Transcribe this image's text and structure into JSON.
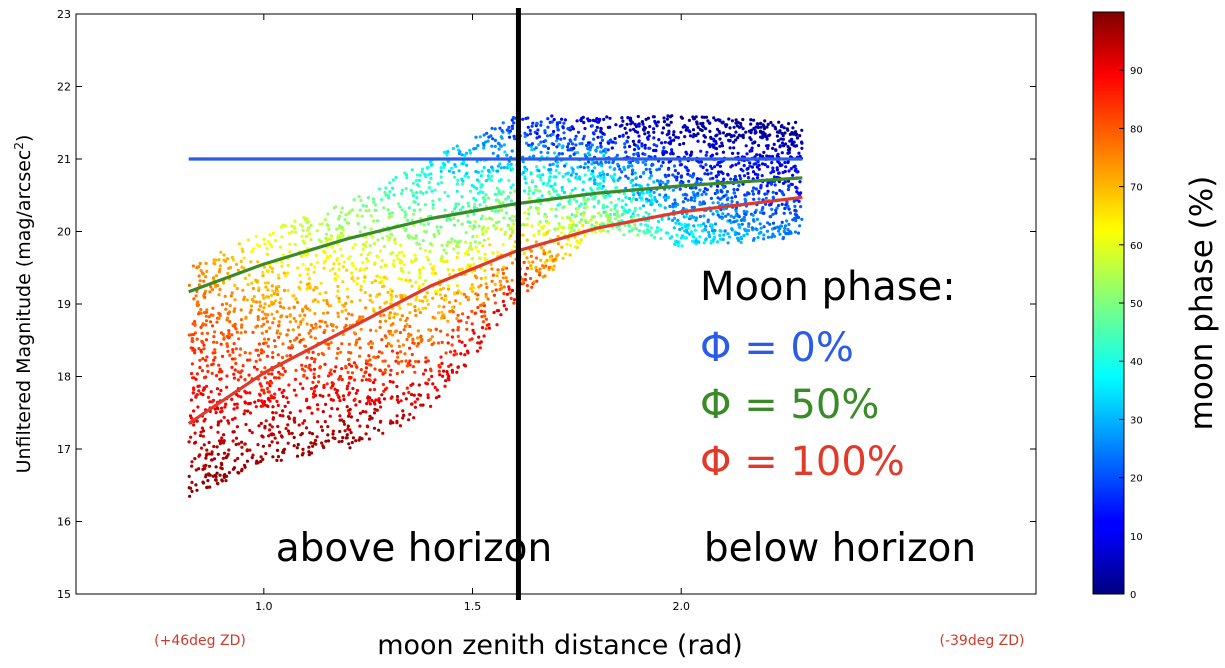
{
  "chart_data": {
    "type": "scatter",
    "xlabel": "moon zenith distance (rad)",
    "ylabel": "Unfiltered Magnitude (mag/arcsec",
    "ylabel_sup": "2",
    "ylabel_close": ")",
    "xlim": [
      0.55,
      2.85
    ],
    "ylim": [
      15,
      23
    ],
    "x_ticks": [
      1.0,
      1.5,
      2.0
    ],
    "x_tick_labels": [
      "1.0",
      "1.5",
      "2.0"
    ],
    "y_ticks": [
      15,
      16,
      17,
      18,
      19,
      20,
      21,
      22,
      23
    ],
    "y_tick_labels": [
      "15",
      "16",
      "17",
      "18",
      "19",
      "20",
      "21",
      "22",
      "23"
    ],
    "x_left_note": "(+46deg ZD)",
    "x_right_note": "(-39deg ZD)",
    "horizon_x": 1.61,
    "region_labels": {
      "left": "above horizon",
      "right": "below horizon"
    },
    "legend": {
      "title": "Moon phase:",
      "entries": [
        {
          "label": "Φ = 0%",
          "color": "#2b5ce8"
        },
        {
          "label": "Φ = 50%",
          "color": "#3a8a28"
        },
        {
          "label": "Φ = 100%",
          "color": "#e03a2a"
        }
      ]
    },
    "series": [
      {
        "name": "Φ = 0%",
        "kind": "line",
        "color": "#2b5ce8",
        "x": [
          0.82,
          2.29
        ],
        "y": [
          21.0,
          21.0
        ]
      },
      {
        "name": "Φ = 50%",
        "kind": "line",
        "color": "#3a8a28",
        "x": [
          0.82,
          1.0,
          1.2,
          1.4,
          1.6,
          1.8,
          2.0,
          2.29
        ],
        "y": [
          19.17,
          19.55,
          19.9,
          20.18,
          20.38,
          20.53,
          20.63,
          20.74
        ]
      },
      {
        "name": "Φ = 100%",
        "kind": "line",
        "color": "#e03a2a",
        "x": [
          0.82,
          1.0,
          1.2,
          1.4,
          1.6,
          1.8,
          2.0,
          2.29
        ],
        "y": [
          17.35,
          18.05,
          18.65,
          19.25,
          19.72,
          20.05,
          20.27,
          20.47
        ]
      }
    ],
    "scatter_description_envelope": [
      {
        "x": 0.82,
        "y_range": [
          16.3,
          19.5
        ],
        "phase_range": [
          75,
          99
        ]
      },
      {
        "x": 1.0,
        "y_range": [
          16.8,
          20.0
        ],
        "phase_range": [
          60,
          99
        ]
      },
      {
        "x": 1.2,
        "y_range": [
          17.0,
          20.4
        ],
        "phase_range": [
          50,
          99
        ]
      },
      {
        "x": 1.4,
        "y_range": [
          17.5,
          21.0
        ],
        "phase_range": [
          35,
          95
        ]
      },
      {
        "x": 1.6,
        "y_range": [
          19.0,
          21.6
        ],
        "phase_range": [
          15,
          90
        ]
      },
      {
        "x": 1.8,
        "y_range": [
          20.0,
          21.6
        ],
        "phase_range": [
          5,
          60
        ]
      },
      {
        "x": 2.0,
        "y_range": [
          19.8,
          21.6
        ],
        "phase_range": [
          0,
          40
        ]
      },
      {
        "x": 2.29,
        "y_range": [
          19.9,
          21.5
        ],
        "phase_range": [
          0,
          25
        ]
      }
    ],
    "colorbar": {
      "label": "moon phase (%)",
      "range": [
        0,
        100
      ],
      "ticks": [
        0,
        10,
        20,
        30,
        40,
        50,
        60,
        70,
        80,
        90
      ],
      "tick_labels": [
        "0",
        "10",
        "20",
        "30",
        "40",
        "50",
        "60",
        "70",
        "80",
        "90"
      ],
      "colormap": "jet"
    }
  }
}
